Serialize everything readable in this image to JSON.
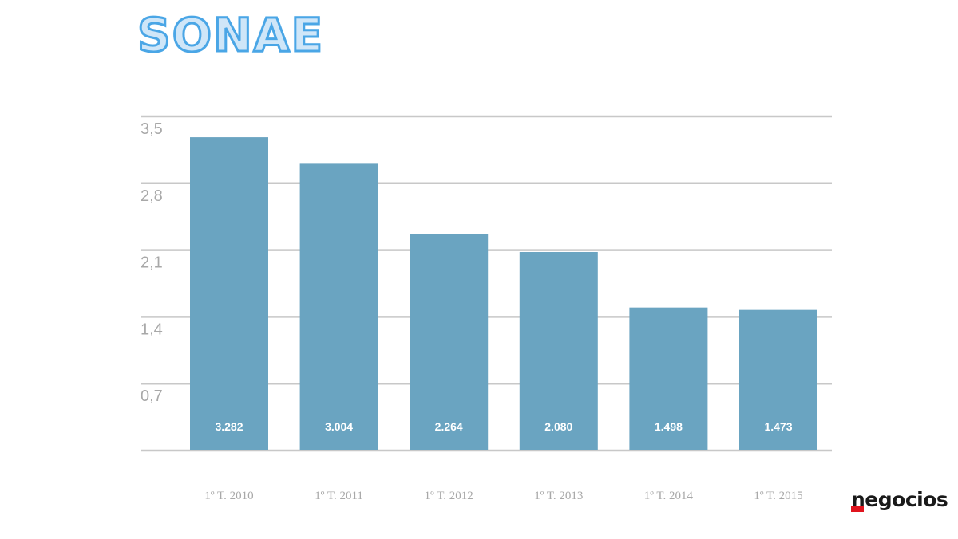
{
  "logo": {
    "text": "SONAE",
    "color": "#4aa6e6"
  },
  "brand": {
    "text": "negocios",
    "accent_color": "#e0141e"
  },
  "chart_data": {
    "type": "bar",
    "title": "",
    "xlabel": "",
    "ylabel": "",
    "categories": [
      "1º T. 2010",
      "1º T. 2011",
      "1º T. 2012",
      "1º T. 2013",
      "1º T. 2014",
      "1º T. 2015"
    ],
    "values": [
      3.282,
      3.004,
      2.264,
      2.08,
      1.498,
      1.473
    ],
    "data_labels": [
      "3.282",
      "3.004",
      "2.264",
      "2.080",
      "1.498",
      "1.473"
    ],
    "ylim": [
      0,
      3.5
    ],
    "y_ticks": [
      0.7,
      1.4,
      2.1,
      2.8,
      3.5
    ],
    "y_tick_labels": [
      "0,7",
      "1,4",
      "2,1",
      "2,8",
      "3,5"
    ],
    "grid": true,
    "bar_color": "#6aa4c1",
    "grid_color": "#c8c8c8",
    "tick_label_color": "#a8a8a8",
    "data_label_color": "#ffffff"
  }
}
